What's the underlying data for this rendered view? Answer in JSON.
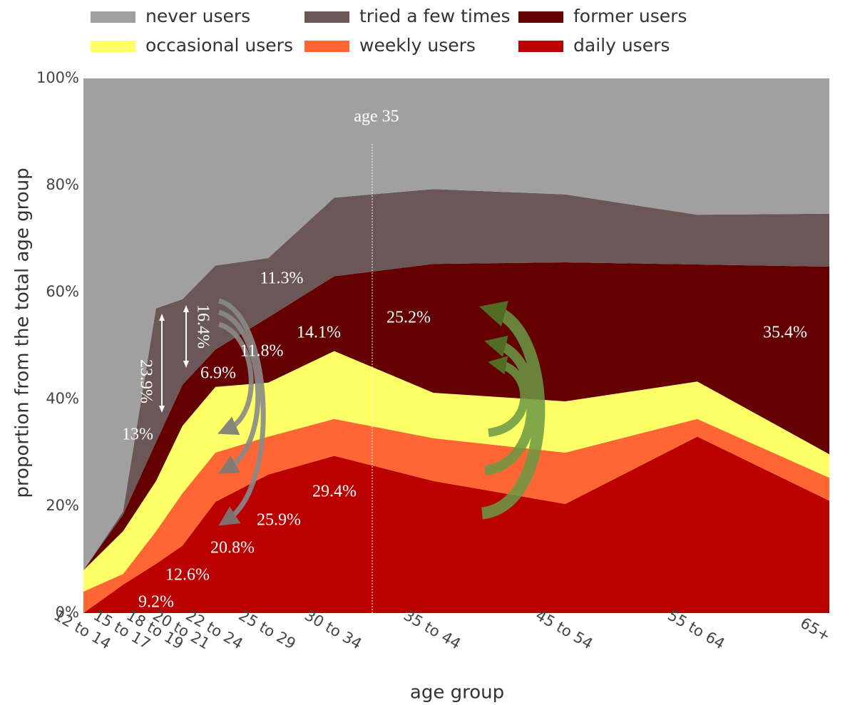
{
  "chart_data": {
    "type": "stacked_area",
    "x_label": "age group",
    "y_label": "proportion from the total age group",
    "x": [
      13,
      16,
      18.5,
      20.5,
      23,
      27,
      32,
      39.5,
      49.5,
      59.5,
      69.5
    ],
    "xlim": [
      13,
      69.5
    ],
    "xticks": [
      {
        "value": 13,
        "label": "12 to 14"
      },
      {
        "value": 16,
        "label": "15 to 17"
      },
      {
        "value": 18.5,
        "label": "18 to 19"
      },
      {
        "value": 20.5,
        "label": "20 to 21"
      },
      {
        "value": 23,
        "label": "22 to 24"
      },
      {
        "value": 27,
        "label": "25 to 29"
      },
      {
        "value": 32,
        "label": "30 to 34"
      },
      {
        "value": 39.5,
        "label": "35 to 44"
      },
      {
        "value": 49.5,
        "label": "45 to 54"
      },
      {
        "value": 59.5,
        "label": "55 to 64"
      },
      {
        "value": 69.5,
        "label": "65+"
      }
    ],
    "ylim": [
      0,
      100
    ],
    "yticks": [
      {
        "value": 0,
        "label": "0%"
      },
      {
        "value": 20,
        "label": "20%"
      },
      {
        "value": 40,
        "label": "40%"
      },
      {
        "value": 60,
        "label": "60%"
      },
      {
        "value": 80,
        "label": "80%"
      },
      {
        "value": 100,
        "label": "100%"
      }
    ],
    "grid": false,
    "series": [
      {
        "name": "daily users",
        "color": "#bb0000",
        "values": [
          0,
          5.3,
          9.2,
          12.6,
          20.8,
          25.9,
          29.4,
          24.7,
          20.4,
          33,
          21
        ]
      },
      {
        "name": "weekly users",
        "color": "#ff6633",
        "values": [
          4,
          2,
          6.1,
          9.8,
          9.2,
          7.1,
          6.9,
          8,
          9.6,
          3.3,
          4.3
        ]
      },
      {
        "name": "occasional users",
        "color": "#ffff66",
        "values": [
          4,
          8,
          9.4,
          12.6,
          12.3,
          10.1,
          12.7,
          8.5,
          9.6,
          7,
          4.4
        ]
      },
      {
        "name": "former users",
        "color": "#650000",
        "values": [
          0,
          3.1,
          7.3,
          7.7,
          7,
          12.2,
          14,
          24.1,
          26,
          21.9,
          35.1
        ]
      },
      {
        "name": "tried a few times",
        "color": "#6b5757",
        "values": [
          0,
          0.6,
          25,
          16,
          15.7,
          11.1,
          14.7,
          14,
          12.7,
          9.3,
          9.9
        ]
      },
      {
        "name": "never users",
        "color": "#a0a0a0",
        "values": [
          92,
          81,
          43,
          41.3,
          35,
          33.6,
          22.3,
          20.7,
          21.7,
          25.5,
          25.3
        ]
      }
    ],
    "annotations": [
      "age 35",
      "11.3%",
      "16.4%",
      "23.9%",
      "14.1%",
      "11.8%",
      "25.2%",
      "35.4%",
      "6.9%",
      "13%",
      "29.4%",
      "25.9%",
      "20.8%",
      "12.6%",
      "9.2%"
    ]
  }
}
